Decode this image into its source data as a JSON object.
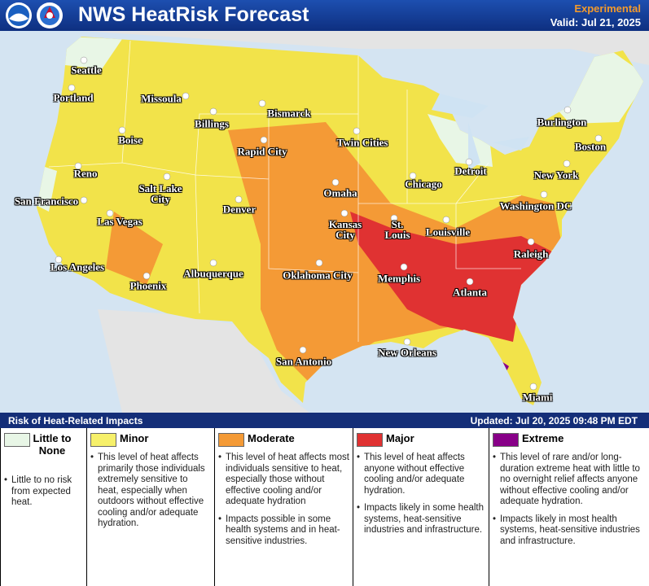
{
  "header": {
    "title": "NWS HeatRisk Forecast",
    "status": "Experimental",
    "valid": "Valid: Jul 21, 2025"
  },
  "map": {
    "cities": [
      "Seattle",
      "Portland",
      "Missoula",
      "Bismarck",
      "Billings",
      "Boise",
      "Rapid City",
      "Twin Cities",
      "Burlington",
      "Boston",
      "Reno",
      "Salt Lake City",
      "Omaha",
      "Chicago",
      "Detroit",
      "New York",
      "San Francisco",
      "Denver",
      "Kansas City",
      "St. Louis",
      "Louisville",
      "Washington DC",
      "Las Vegas",
      "Los Angeles",
      "Albuquerque",
      "Oklahoma City",
      "Memphis",
      "Raleigh",
      "Phoenix",
      "Atlanta",
      "San Antonio",
      "New Orleans",
      "Miami"
    ]
  },
  "legend": {
    "title": "Risk of Heat-Related Impacts",
    "updated": "Updated: Jul 20, 2025 09:48 PM EDT",
    "levels": [
      {
        "name": "Little to None",
        "color": "#e8f6e6",
        "bullets": [
          "Little to no risk from expected heat."
        ]
      },
      {
        "name": "Minor",
        "color": "#f6f06a",
        "bullets": [
          "This level of heat affects primarily those individuals extremely sensitive to heat, especially when outdoors without effective cooling and/or adequate hydration."
        ]
      },
      {
        "name": "Moderate",
        "color": "#f49a36",
        "bullets": [
          "This level of heat affects most individuals sensitive to heat, especially those without effective cooling and/or adequate hydration",
          "Impacts possible in some health systems and in heat-sensitive industries."
        ]
      },
      {
        "name": "Major",
        "color": "#e03232",
        "bullets": [
          "This level of heat affects anyone without effective cooling and/or adequate hydration.",
          "Impacts likely in some health systems, heat-sensitive industries and infrastructure."
        ]
      },
      {
        "name": "Extreme",
        "color": "#880088",
        "bullets": [
          "This level of rare and/or long-duration extreme heat with little to no overnight relief affects anyone without effective cooling and/or adequate hydration.",
          "Impacts likely in most health systems, heat-sensitive industries and infrastructure."
        ]
      }
    ]
  }
}
